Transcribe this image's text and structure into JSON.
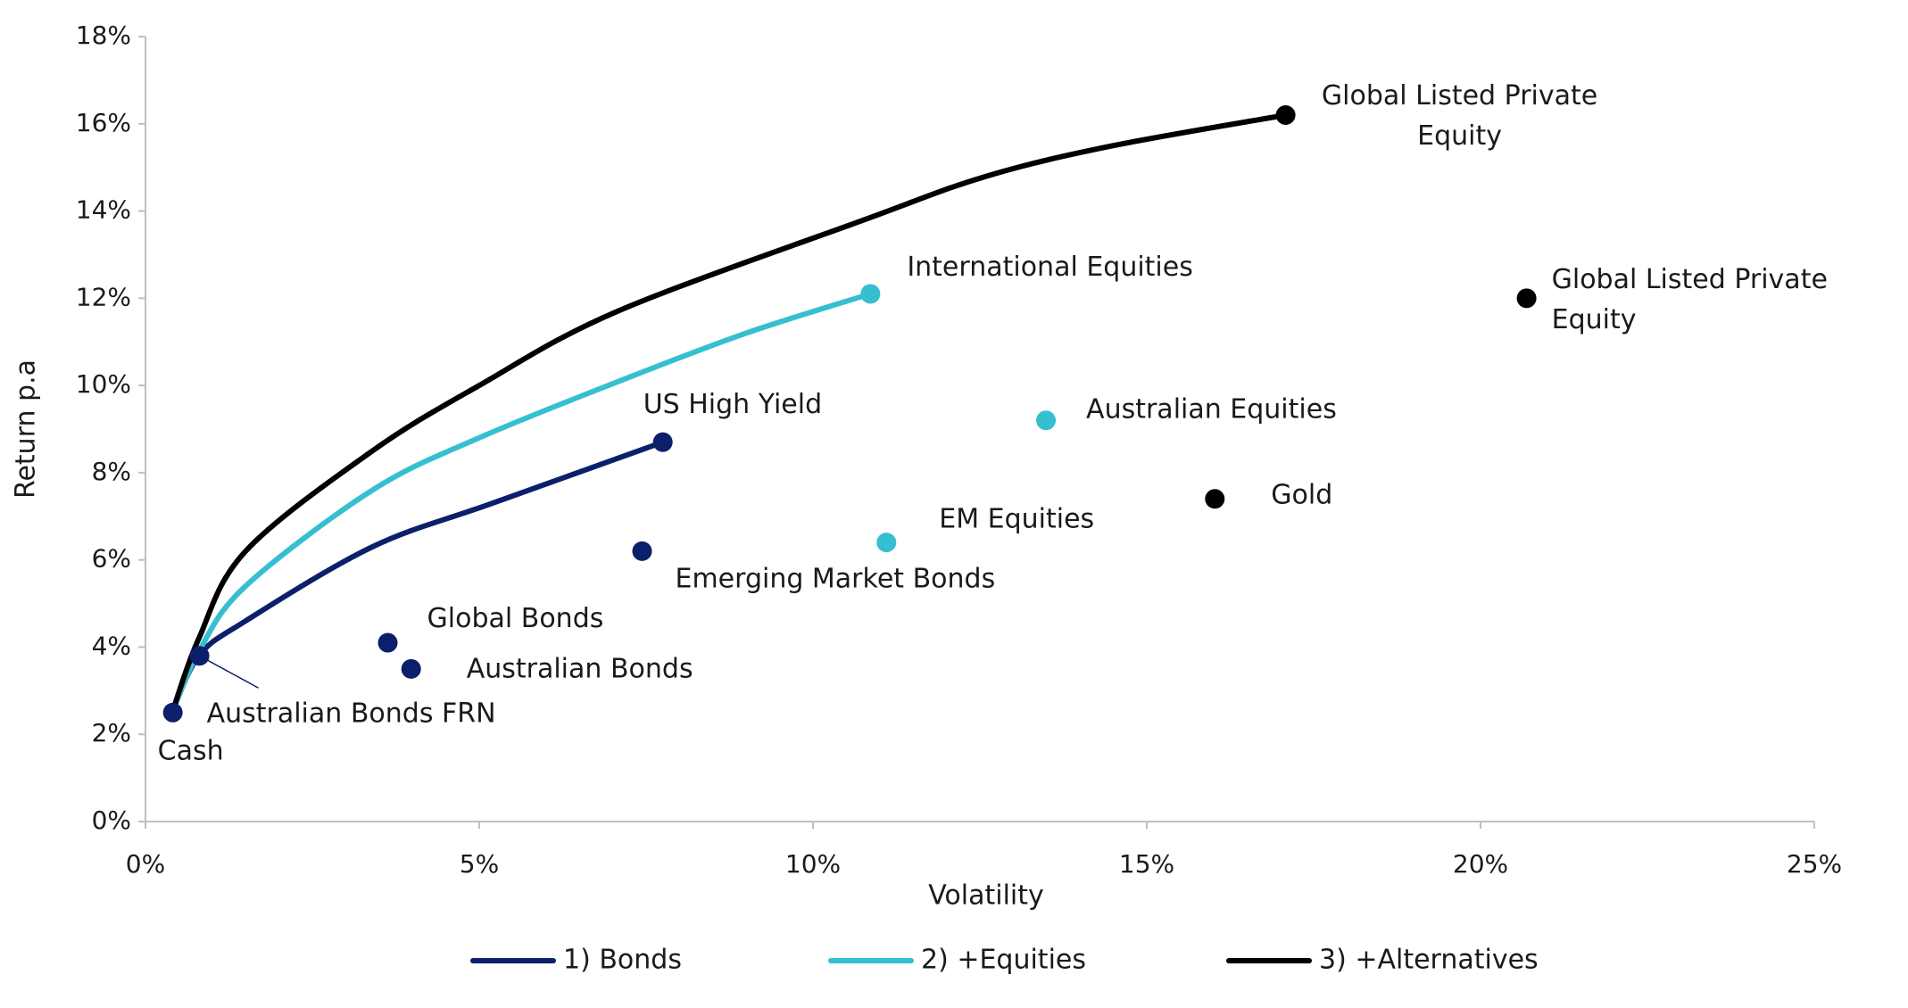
{
  "chart_data": {
    "type": "scatter",
    "xlabel": "Volatility",
    "ylabel": "Return p.a",
    "xlim": [
      0,
      25
    ],
    "xticks": [
      {
        "value": 0,
        "label": "0%"
      },
      {
        "value": 5,
        "label": "5%"
      },
      {
        "value": 10,
        "label": "10%"
      },
      {
        "value": 15,
        "label": "15%"
      },
      {
        "value": 20,
        "label": "20%"
      },
      {
        "value": 25,
        "label": "25%"
      }
    ],
    "ylim": [
      0,
      18
    ],
    "yticks": [
      {
        "value": 0,
        "label": "0%"
      },
      {
        "value": 2,
        "label": "2%"
      },
      {
        "value": 4,
        "label": "4%"
      },
      {
        "value": 6,
        "label": "6%"
      },
      {
        "value": 8,
        "label": "8%"
      },
      {
        "value": 10,
        "label": "10%"
      },
      {
        "value": 12,
        "label": "12%"
      },
      {
        "value": 14,
        "label": "14%"
      },
      {
        "value": 16,
        "label": "16%"
      },
      {
        "value": 18,
        "label": "18%"
      }
    ],
    "grid": false,
    "legend": "bottom",
    "series": [
      {
        "name": "1) Bonds",
        "color": "#0c1f6b",
        "x": [
          0.4,
          0.8,
          1.5,
          3.4,
          5.2,
          7.75
        ],
        "values": [
          2.5,
          3.8,
          4.6,
          6.3,
          7.3,
          8.7
        ]
      },
      {
        "name": "2) +Equities",
        "color": "#35bfd0",
        "x": [
          0.4,
          0.8,
          1.5,
          3.4,
          5.0,
          7.1,
          9.0,
          10.86
        ],
        "values": [
          2.5,
          3.9,
          5.4,
          7.6,
          8.8,
          10.1,
          11.2,
          12.1
        ]
      },
      {
        "name": "3) +Alternatives",
        "color": "#000000",
        "x": [
          0.4,
          0.8,
          1.5,
          3.4,
          5.0,
          7.07,
          10.77,
          12.6,
          14.5,
          17.08
        ],
        "values": [
          2.5,
          4.2,
          6.2,
          8.5,
          10.0,
          11.7,
          13.8,
          14.8,
          15.5,
          16.2
        ]
      }
    ],
    "points": [
      {
        "label": "Cash",
        "x": 0.41,
        "y": 2.5,
        "color": "#0c1f6b"
      },
      {
        "label": "Australian Bonds FRN",
        "x": 0.81,
        "y": 3.8,
        "color": "#0c1f6b"
      },
      {
        "label": "Global Bonds",
        "x": 3.63,
        "y": 4.1,
        "color": "#0c1f6b"
      },
      {
        "label": "Australian Bonds",
        "x": 3.98,
        "y": 3.5,
        "color": "#0c1f6b"
      },
      {
        "label": "Emerging Market Bonds",
        "x": 7.44,
        "y": 6.2,
        "color": "#0c1f6b"
      },
      {
        "label": "US High Yield",
        "x": 7.75,
        "y": 8.7,
        "color": "#0c1f6b"
      },
      {
        "label": "International Equities",
        "x": 10.86,
        "y": 12.1,
        "color": "#35bfd0"
      },
      {
        "label": "Australian Equities",
        "x": 13.49,
        "y": 9.2,
        "color": "#35bfd0"
      },
      {
        "label": "EM Equities",
        "x": 11.1,
        "y": 6.4,
        "color": "#35bfd0"
      },
      {
        "label": "Gold",
        "x": 16.02,
        "y": 7.4,
        "color": "#000000"
      },
      {
        "label": "Global Listed Private Equity",
        "x": 17.08,
        "y": 16.2,
        "color": "#000000"
      },
      {
        "label": "Global Listed Private Equity",
        "x": 20.69,
        "y": 12.0,
        "color": "#000000"
      }
    ]
  }
}
